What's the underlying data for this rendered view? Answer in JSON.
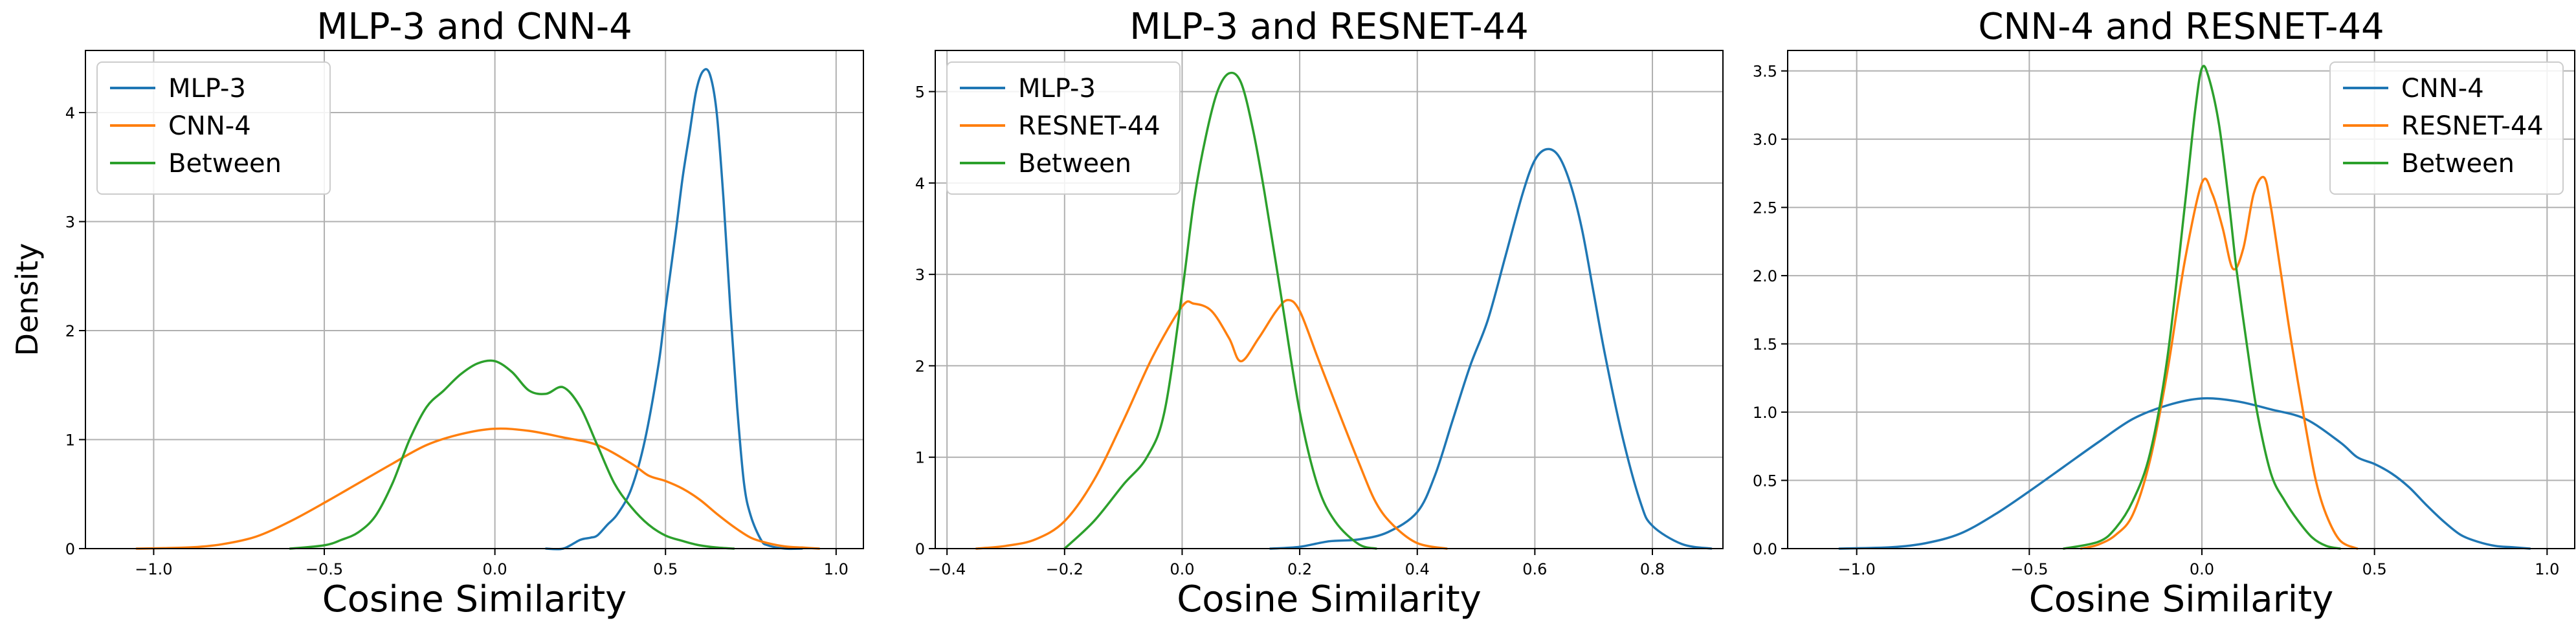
{
  "colors": {
    "series1": "#1f77b4",
    "series2": "#ff7f0e",
    "between": "#2ca02c",
    "grid": "#b0b0b0",
    "axes": "#000000"
  },
  "chart_data": [
    {
      "type": "line",
      "title": "MLP-3 and CNN-4",
      "xlabel": "Cosine Similarity",
      "ylabel": "Density",
      "xlim": [
        -1.2,
        1.08
      ],
      "ylim": [
        0,
        4.57
      ],
      "xticks": [
        -1.0,
        -0.5,
        0.0,
        0.5,
        1.0
      ],
      "xtick_labels": [
        "−1.0",
        "−0.5",
        "0.0",
        "0.5",
        "1.0"
      ],
      "yticks": [
        0,
        1,
        2,
        3,
        4
      ],
      "ytick_labels": [
        "0",
        "1",
        "2",
        "3",
        "4"
      ],
      "grid": true,
      "legend": "top-left",
      "series": [
        {
          "name": "MLP-3",
          "color": "#1f77b4",
          "x": [
            0.15,
            0.2,
            0.25,
            0.28,
            0.3,
            0.33,
            0.36,
            0.4,
            0.44,
            0.48,
            0.5,
            0.53,
            0.55,
            0.57,
            0.59,
            0.61,
            0.63,
            0.65,
            0.67,
            0.69,
            0.71,
            0.73,
            0.75,
            0.78,
            0.8,
            0.85,
            0.9
          ],
          "y": [
            0,
            0,
            0.08,
            0.1,
            0.12,
            0.22,
            0.32,
            0.55,
            1.0,
            1.7,
            2.2,
            2.9,
            3.4,
            3.8,
            4.2,
            4.38,
            4.35,
            4.0,
            3.2,
            2.2,
            1.3,
            0.6,
            0.3,
            0.08,
            0.03,
            0.0,
            0.0
          ]
        },
        {
          "name": "CNN-4",
          "color": "#ff7f0e",
          "x": [
            -1.05,
            -0.9,
            -0.8,
            -0.7,
            -0.6,
            -0.5,
            -0.4,
            -0.3,
            -0.2,
            -0.1,
            0.0,
            0.1,
            0.2,
            0.3,
            0.4,
            0.45,
            0.5,
            0.55,
            0.6,
            0.65,
            0.7,
            0.75,
            0.8,
            0.85,
            0.9,
            0.95
          ],
          "y": [
            0.0,
            0.01,
            0.04,
            0.11,
            0.25,
            0.42,
            0.6,
            0.78,
            0.95,
            1.05,
            1.1,
            1.08,
            1.02,
            0.95,
            0.78,
            0.67,
            0.62,
            0.55,
            0.45,
            0.32,
            0.2,
            0.1,
            0.05,
            0.02,
            0.01,
            0.0
          ]
        },
        {
          "name": "Between",
          "color": "#2ca02c",
          "x": [
            -0.6,
            -0.5,
            -0.45,
            -0.4,
            -0.35,
            -0.3,
            -0.25,
            -0.2,
            -0.15,
            -0.1,
            -0.05,
            0.0,
            0.05,
            0.1,
            0.15,
            0.2,
            0.25,
            0.3,
            0.35,
            0.4,
            0.45,
            0.5,
            0.55,
            0.6,
            0.65,
            0.7
          ],
          "y": [
            0.0,
            0.03,
            0.08,
            0.15,
            0.3,
            0.6,
            1.0,
            1.3,
            1.45,
            1.6,
            1.7,
            1.72,
            1.62,
            1.45,
            1.42,
            1.48,
            1.3,
            0.95,
            0.6,
            0.38,
            0.22,
            0.12,
            0.07,
            0.03,
            0.01,
            0.0
          ]
        }
      ]
    },
    {
      "type": "line",
      "title": "MLP-3 and RESNET-44",
      "xlabel": "Cosine Similarity",
      "ylabel": "",
      "xlim": [
        -0.42,
        0.92
      ],
      "ylim": [
        0,
        5.45
      ],
      "xticks": [
        -0.4,
        -0.2,
        0.0,
        0.2,
        0.4,
        0.6,
        0.8
      ],
      "xtick_labels": [
        "−0.4",
        "−0.2",
        "0.0",
        "0.2",
        "0.4",
        "0.6",
        "0.8"
      ],
      "yticks": [
        0,
        1,
        2,
        3,
        4,
        5
      ],
      "ytick_labels": [
        "0",
        "1",
        "2",
        "3",
        "4",
        "5"
      ],
      "grid": true,
      "legend": "top-left",
      "series": [
        {
          "name": "MLP-3",
          "color": "#1f77b4",
          "x": [
            0.15,
            0.2,
            0.25,
            0.3,
            0.35,
            0.4,
            0.43,
            0.46,
            0.49,
            0.52,
            0.55,
            0.58,
            0.6,
            0.62,
            0.64,
            0.66,
            0.68,
            0.7,
            0.72,
            0.75,
            0.78,
            0.8,
            0.85,
            0.9
          ],
          "y": [
            0.0,
            0.02,
            0.08,
            0.1,
            0.18,
            0.4,
            0.8,
            1.4,
            2.0,
            2.5,
            3.2,
            3.9,
            4.25,
            4.37,
            4.3,
            4.0,
            3.5,
            2.8,
            2.1,
            1.2,
            0.5,
            0.25,
            0.05,
            0.0
          ]
        },
        {
          "name": "RESNET-44",
          "color": "#ff7f0e",
          "x": [
            -0.35,
            -0.3,
            -0.25,
            -0.2,
            -0.15,
            -0.1,
            -0.05,
            0.0,
            0.02,
            0.05,
            0.08,
            0.1,
            0.13,
            0.16,
            0.18,
            0.2,
            0.23,
            0.26,
            0.3,
            0.33,
            0.36,
            0.4,
            0.45
          ],
          "y": [
            0.0,
            0.03,
            0.1,
            0.3,
            0.75,
            1.4,
            2.1,
            2.65,
            2.68,
            2.6,
            2.3,
            2.05,
            2.3,
            2.6,
            2.72,
            2.6,
            2.1,
            1.6,
            0.95,
            0.5,
            0.25,
            0.06,
            0.0
          ]
        },
        {
          "name": "Between",
          "color": "#2ca02c",
          "x": [
            -0.2,
            -0.15,
            -0.1,
            -0.06,
            -0.03,
            0.0,
            0.02,
            0.04,
            0.06,
            0.08,
            0.1,
            0.12,
            0.14,
            0.17,
            0.2,
            0.23,
            0.26,
            0.3,
            0.33
          ],
          "y": [
            0.0,
            0.3,
            0.7,
            1.0,
            1.5,
            2.8,
            3.8,
            4.5,
            5.0,
            5.2,
            5.1,
            4.6,
            3.9,
            2.7,
            1.5,
            0.7,
            0.3,
            0.05,
            0.0
          ]
        }
      ]
    },
    {
      "type": "line",
      "title": "CNN-4 and RESNET-44",
      "xlabel": "Cosine Similarity",
      "ylabel": "",
      "xlim": [
        -1.2,
        1.08
      ],
      "ylim": [
        0,
        3.65
      ],
      "xticks": [
        -1.0,
        -0.5,
        0.0,
        0.5,
        1.0
      ],
      "xtick_labels": [
        "−1.0",
        "−0.5",
        "0.0",
        "0.5",
        "1.0"
      ],
      "yticks": [
        0,
        0.5,
        1.0,
        1.5,
        2.0,
        2.5,
        3.0,
        3.5
      ],
      "ytick_labels": [
        "0.0",
        "0.5",
        "1.0",
        "1.5",
        "2.0",
        "2.5",
        "3.0",
        "3.5"
      ],
      "grid": true,
      "legend": "top-right",
      "series": [
        {
          "name": "CNN-4",
          "color": "#1f77b4",
          "x": [
            -1.05,
            -0.9,
            -0.8,
            -0.7,
            -0.6,
            -0.5,
            -0.4,
            -0.3,
            -0.2,
            -0.1,
            0.0,
            0.1,
            0.2,
            0.3,
            0.4,
            0.45,
            0.5,
            0.55,
            0.6,
            0.65,
            0.7,
            0.75,
            0.8,
            0.85,
            0.9,
            0.95
          ],
          "y": [
            0.0,
            0.01,
            0.04,
            0.11,
            0.25,
            0.42,
            0.6,
            0.78,
            0.95,
            1.05,
            1.1,
            1.08,
            1.02,
            0.95,
            0.78,
            0.67,
            0.62,
            0.55,
            0.45,
            0.32,
            0.2,
            0.1,
            0.05,
            0.02,
            0.01,
            0.0
          ]
        },
        {
          "name": "RESNET-44",
          "color": "#ff7f0e",
          "x": [
            -0.35,
            -0.3,
            -0.25,
            -0.2,
            -0.15,
            -0.1,
            -0.05,
            0.0,
            0.03,
            0.06,
            0.09,
            0.12,
            0.15,
            0.18,
            0.2,
            0.23,
            0.26,
            0.3,
            0.33,
            0.36,
            0.4,
            0.45
          ],
          "y": [
            0.0,
            0.03,
            0.1,
            0.25,
            0.65,
            1.3,
            2.1,
            2.68,
            2.6,
            2.35,
            2.05,
            2.2,
            2.6,
            2.72,
            2.5,
            2.0,
            1.5,
            0.9,
            0.5,
            0.25,
            0.06,
            0.0
          ]
        },
        {
          "name": "Between",
          "color": "#2ca02c",
          "x": [
            -0.4,
            -0.3,
            -0.25,
            -0.2,
            -0.15,
            -0.1,
            -0.05,
            -0.02,
            0.0,
            0.02,
            0.05,
            0.08,
            0.1,
            0.13,
            0.16,
            0.2,
            0.24,
            0.28,
            0.32,
            0.36,
            0.4
          ],
          "y": [
            0.0,
            0.05,
            0.15,
            0.35,
            0.7,
            1.4,
            2.5,
            3.2,
            3.52,
            3.45,
            3.1,
            2.5,
            2.05,
            1.5,
            1.0,
            0.55,
            0.35,
            0.2,
            0.08,
            0.02,
            0.0
          ]
        }
      ]
    }
  ]
}
